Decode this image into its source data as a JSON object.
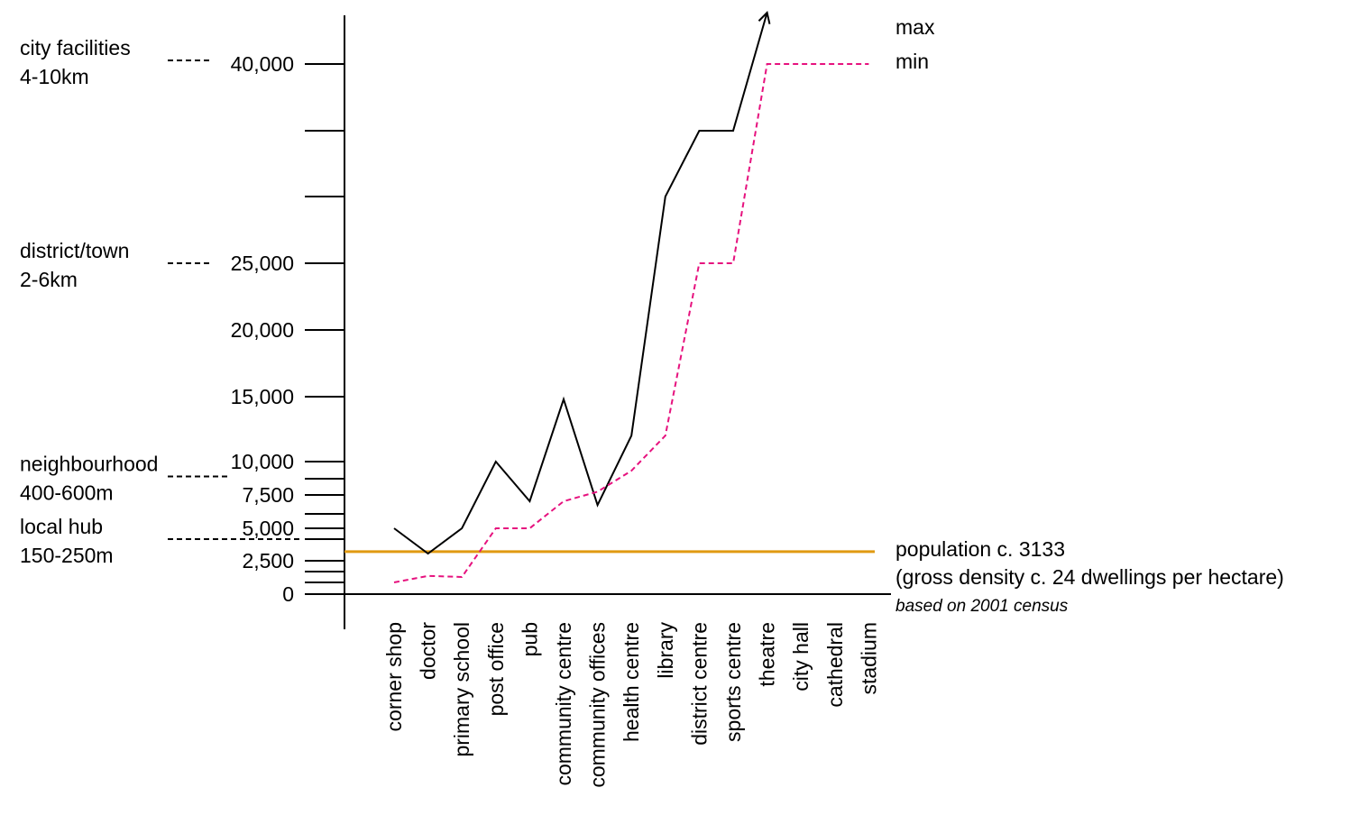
{
  "chart_data": {
    "type": "line",
    "categories": [
      "corner shop",
      "doctor",
      "primary school",
      "post office",
      "pub",
      "community centre",
      "community offices",
      "health centre",
      "library",
      "district centre",
      "sports centre",
      "theatre",
      "city hall",
      "cathedral",
      "stadium"
    ],
    "series": [
      {
        "name": "max",
        "color": "#000000",
        "style": "solid",
        "values": [
          5000,
          3000,
          5000,
          10000,
          7000,
          14800,
          6700,
          12000,
          30000,
          35000,
          35000,
          44500,
          null,
          null,
          null
        ]
      },
      {
        "name": "min",
        "color": "#e6127e",
        "style": "dashed",
        "values": [
          1000,
          1600,
          1500,
          5000,
          5000,
          7000,
          7700,
          9200,
          12000,
          25000,
          25000,
          40000,
          40000,
          40000,
          40000
        ]
      }
    ],
    "y_ticks": [
      {
        "value": 0,
        "label": "0"
      },
      {
        "value": 1000,
        "label": ""
      },
      {
        "value": 2000,
        "label": ""
      },
      {
        "value": 2500,
        "label": "2,500"
      },
      {
        "value": 4000,
        "label": ""
      },
      {
        "value": 5000,
        "label": "5,000"
      },
      {
        "value": 6000,
        "label": ""
      },
      {
        "value": 7500,
        "label": "7,500"
      },
      {
        "value": 8500,
        "label": ""
      },
      {
        "value": 10000,
        "label": "10,000"
      },
      {
        "value": 15000,
        "label": "15,000"
      },
      {
        "value": 20000,
        "label": "20,000"
      },
      {
        "value": 25000,
        "label": "25,000"
      },
      {
        "value": 30000,
        "label": ""
      },
      {
        "value": 35000,
        "label": ""
      },
      {
        "value": 40000,
        "label": "40,000"
      }
    ],
    "reference_line": {
      "value": 3133,
      "color": "#e09a12",
      "label1": "population c. 3133",
      "label2": "(gross density c. 24 dwellings per hectare)",
      "note": "based on 2001 census"
    },
    "scale_levels": [
      {
        "name": "city facilities",
        "range": "4-10km",
        "value": 40000
      },
      {
        "name": "district/town",
        "range": "2-6km",
        "value": 25000
      },
      {
        "name": "neighbourhood",
        "range": "400-600m",
        "value": 8700
      },
      {
        "name": "local hub",
        "range": "150-250m",
        "value": 4000
      }
    ],
    "legend": [
      "max",
      "min"
    ],
    "ylim": [
      0,
      44500
    ],
    "grid": false
  }
}
